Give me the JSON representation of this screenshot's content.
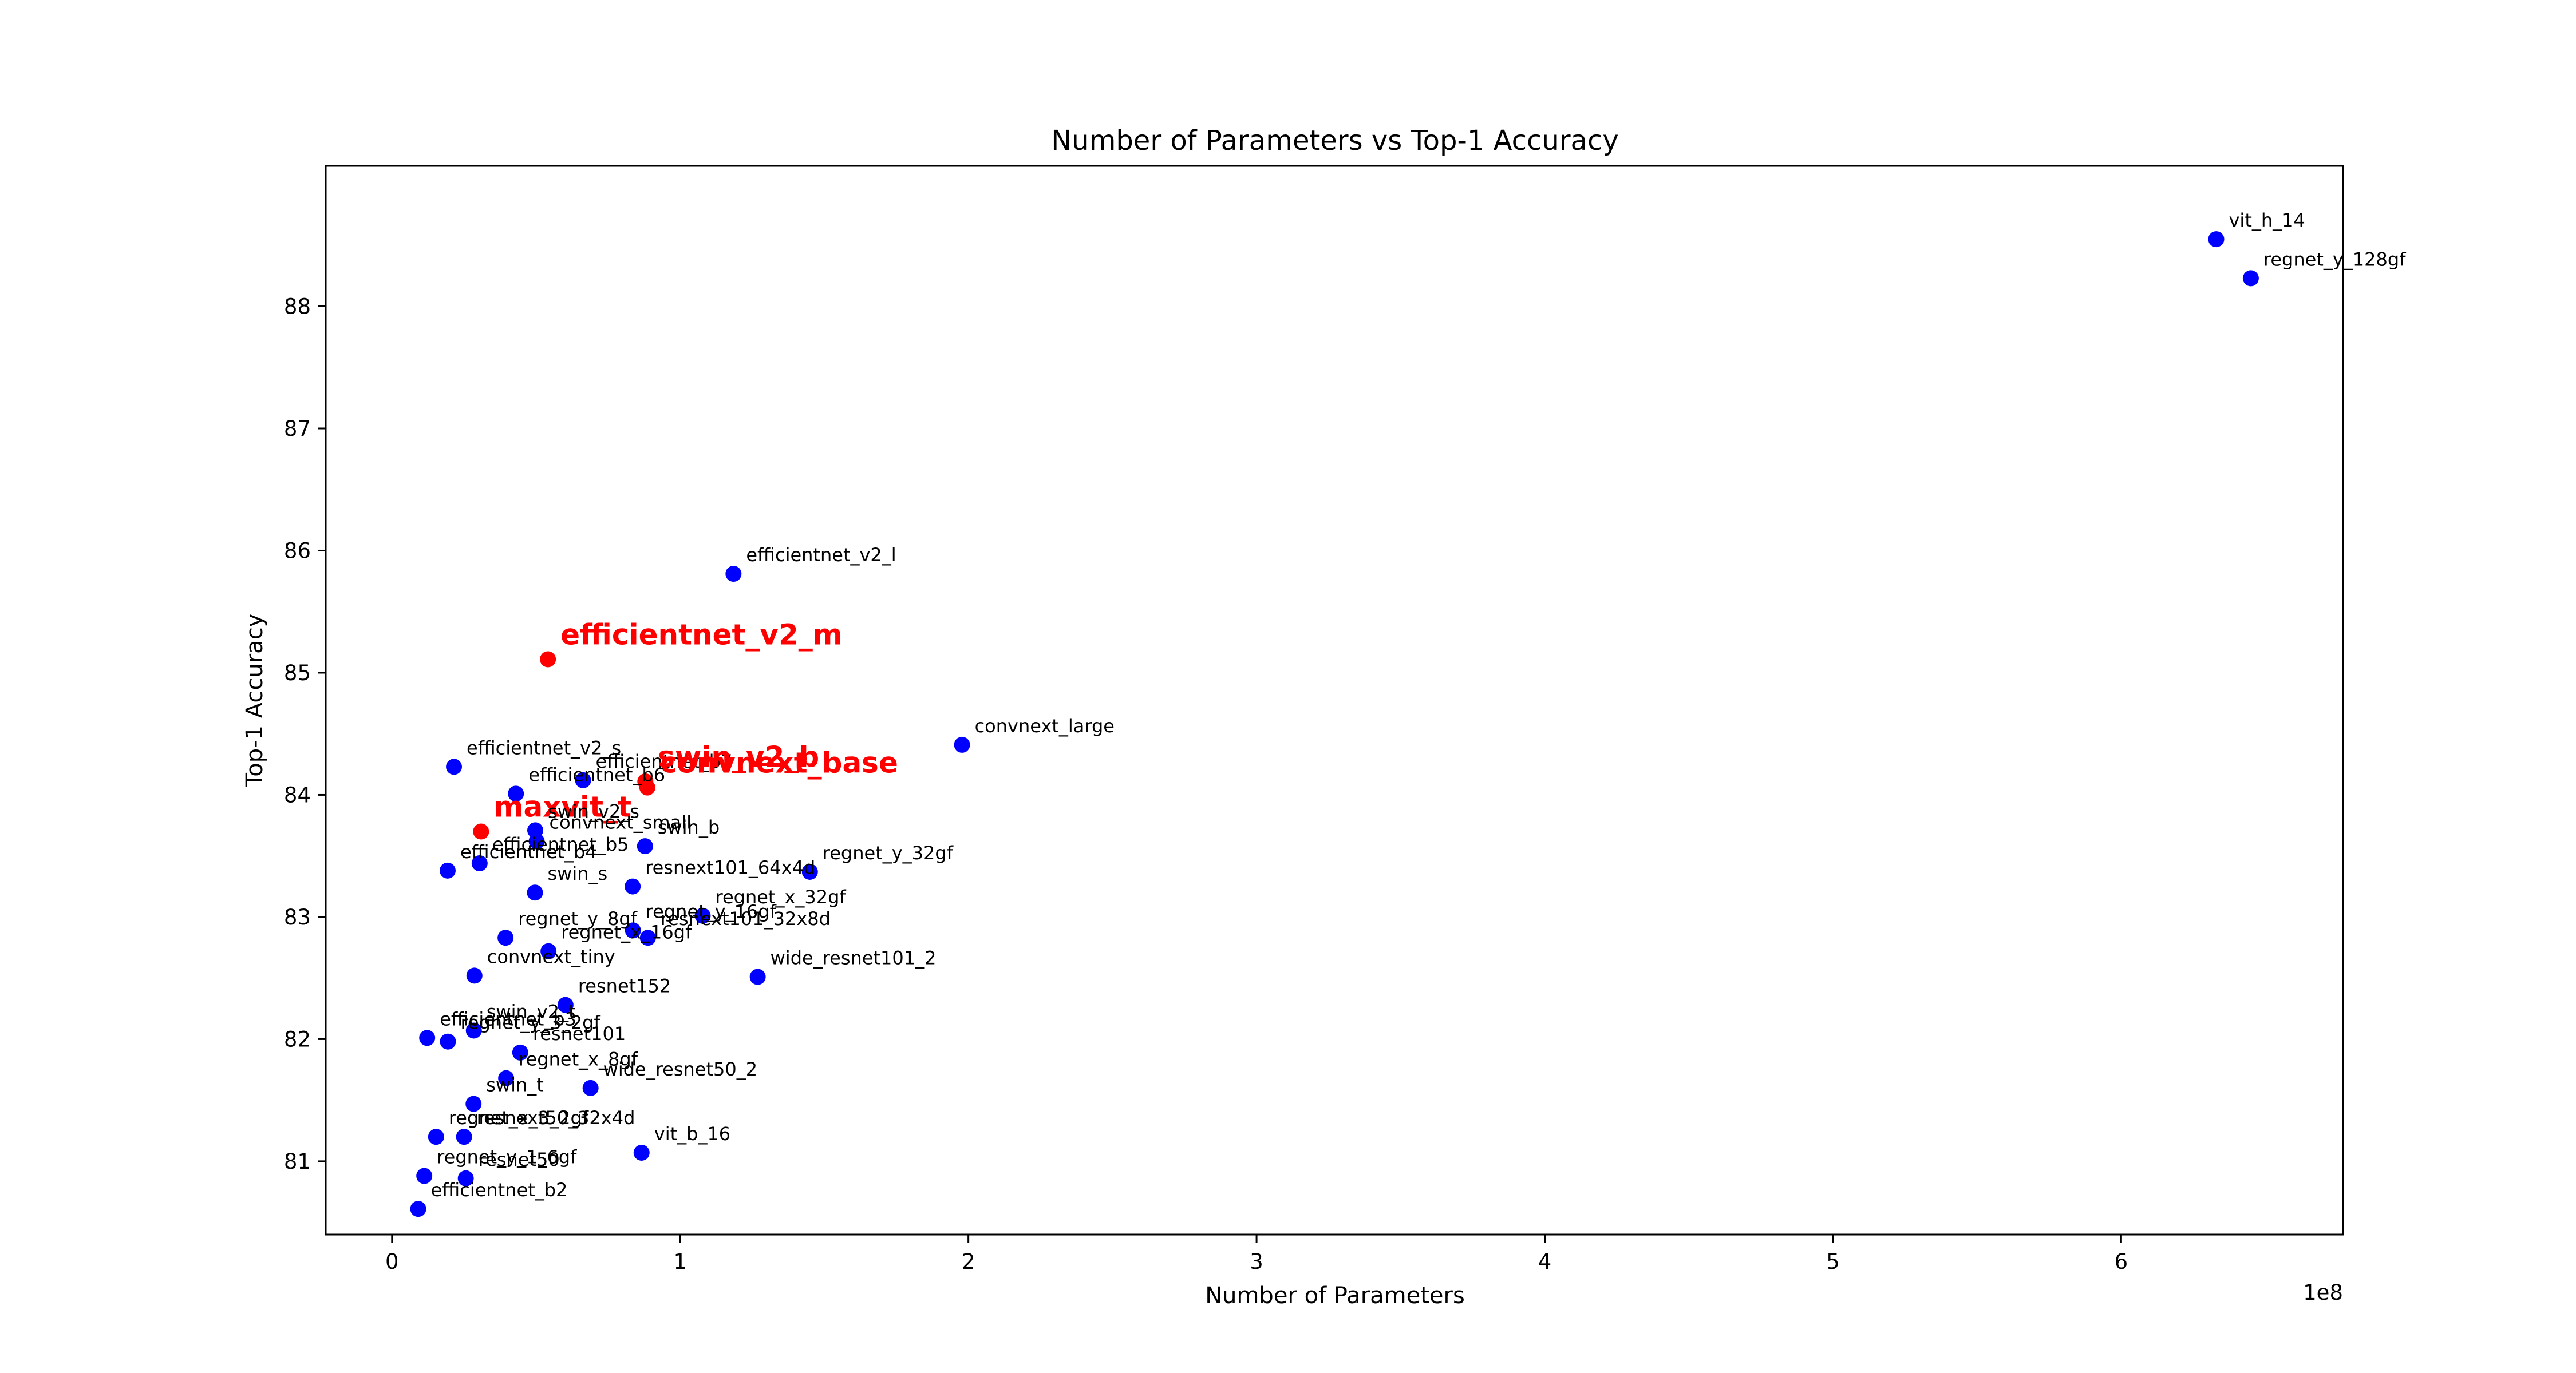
{
  "chart_data": {
    "type": "scatter",
    "title": "Number of Parameters vs Top-1 Accuracy",
    "xlabel": "Number of Parameters",
    "ylabel": "Top-1 Accuracy",
    "x_offset_text": "1e8",
    "xlim": [
      -23000000,
      677000000
    ],
    "ylim": [
      80.4,
      89.15
    ],
    "xticks": [
      0,
      100000000,
      200000000,
      300000000,
      400000000,
      500000000,
      600000000
    ],
    "xtick_labels": [
      "0",
      "1",
      "2",
      "3",
      "4",
      "5",
      "6"
    ],
    "yticks": [
      81,
      82,
      83,
      84,
      85,
      86,
      87,
      88
    ],
    "ytick_labels": [
      "81",
      "82",
      "83",
      "84",
      "85",
      "86",
      "87",
      "88"
    ],
    "colors": {
      "default": "#0000ff",
      "highlight": "#ff0000"
    },
    "points": [
      {
        "name": "vit_h_14",
        "x": 633000000,
        "y": 88.55,
        "highlight": false
      },
      {
        "name": "regnet_y_128gf",
        "x": 645000000,
        "y": 88.23,
        "highlight": false
      },
      {
        "name": "efficientnet_v2_l",
        "x": 118500000,
        "y": 85.81,
        "highlight": false
      },
      {
        "name": "efficientnet_v2_m",
        "x": 54100000,
        "y": 85.11,
        "highlight": true
      },
      {
        "name": "convnext_large",
        "x": 197800000,
        "y": 84.41,
        "highlight": false
      },
      {
        "name": "efficientnet_v2_s",
        "x": 21500000,
        "y": 84.23,
        "highlight": false
      },
      {
        "name": "efficientnet_b7",
        "x": 66300000,
        "y": 84.12,
        "highlight": false
      },
      {
        "name": "swin_v2_b",
        "x": 87900000,
        "y": 84.11,
        "highlight": true
      },
      {
        "name": "convnext_base",
        "x": 88600000,
        "y": 84.06,
        "highlight": true
      },
      {
        "name": "efficientnet_b6",
        "x": 43000000,
        "y": 84.01,
        "highlight": false
      },
      {
        "name": "maxvit_t",
        "x": 30900000,
        "y": 83.7,
        "highlight": true
      },
      {
        "name": "swin_v2_s",
        "x": 49700000,
        "y": 83.71,
        "highlight": false
      },
      {
        "name": "convnext_small",
        "x": 50200000,
        "y": 83.62,
        "highlight": false
      },
      {
        "name": "swin_b",
        "x": 87800000,
        "y": 83.58,
        "highlight": false
      },
      {
        "name": "efficientnet_b5",
        "x": 30400000,
        "y": 83.44,
        "highlight": false
      },
      {
        "name": "efficientnet_b4",
        "x": 19300000,
        "y": 83.38,
        "highlight": false
      },
      {
        "name": "regnet_y_32gf",
        "x": 145000000,
        "y": 83.37,
        "highlight": false
      },
      {
        "name": "resnext101_64x4d",
        "x": 83500000,
        "y": 83.25,
        "highlight": false
      },
      {
        "name": "swin_s",
        "x": 49600000,
        "y": 83.2,
        "highlight": false
      },
      {
        "name": "regnet_x_32gf",
        "x": 107800000,
        "y": 83.01,
        "highlight": false
      },
      {
        "name": "regnet_x_16gf",
        "x": 54300000,
        "y": 82.72,
        "highlight": false
      },
      {
        "name": "regnet_y_16gf",
        "x": 83600000,
        "y": 82.89,
        "highlight": false
      },
      {
        "name": "resnext101_32x8d",
        "x": 88800000,
        "y": 82.83,
        "highlight": false
      },
      {
        "name": "regnet_y_8gf",
        "x": 39400000,
        "y": 82.83,
        "highlight": false
      },
      {
        "name": "convnext_tiny",
        "x": 28600000,
        "y": 82.52,
        "highlight": false
      },
      {
        "name": "wide_resnet101_2",
        "x": 126900000,
        "y": 82.51,
        "highlight": false
      },
      {
        "name": "resnet152",
        "x": 60200000,
        "y": 82.28,
        "highlight": false
      },
      {
        "name": "swin_v2_t",
        "x": 28400000,
        "y": 82.07,
        "highlight": false
      },
      {
        "name": "efficientnet_b3",
        "x": 12200000,
        "y": 82.01,
        "highlight": false
      },
      {
        "name": "regnet_y_3_2gf",
        "x": 19400000,
        "y": 81.98,
        "highlight": false
      },
      {
        "name": "resnet101",
        "x": 44500000,
        "y": 81.89,
        "highlight": false
      },
      {
        "name": "regnet_x_8gf",
        "x": 39600000,
        "y": 81.68,
        "highlight": false
      },
      {
        "name": "wide_resnet50_2",
        "x": 68900000,
        "y": 81.6,
        "highlight": false
      },
      {
        "name": "swin_t",
        "x": 28300000,
        "y": 81.47,
        "highlight": false
      },
      {
        "name": "regnet_x_3_2gf",
        "x": 15300000,
        "y": 81.2,
        "highlight": false
      },
      {
        "name": "resnext50_32x4d",
        "x": 25000000,
        "y": 81.2,
        "highlight": false
      },
      {
        "name": "vit_b_16",
        "x": 86600000,
        "y": 81.07,
        "highlight": false
      },
      {
        "name": "regnet_y_1_6gf",
        "x": 11200000,
        "y": 80.88,
        "highlight": false
      },
      {
        "name": "resnet50",
        "x": 25600000,
        "y": 80.86,
        "highlight": false
      },
      {
        "name": "efficientnet_b2",
        "x": 9100000,
        "y": 80.61,
        "highlight": false
      }
    ]
  }
}
